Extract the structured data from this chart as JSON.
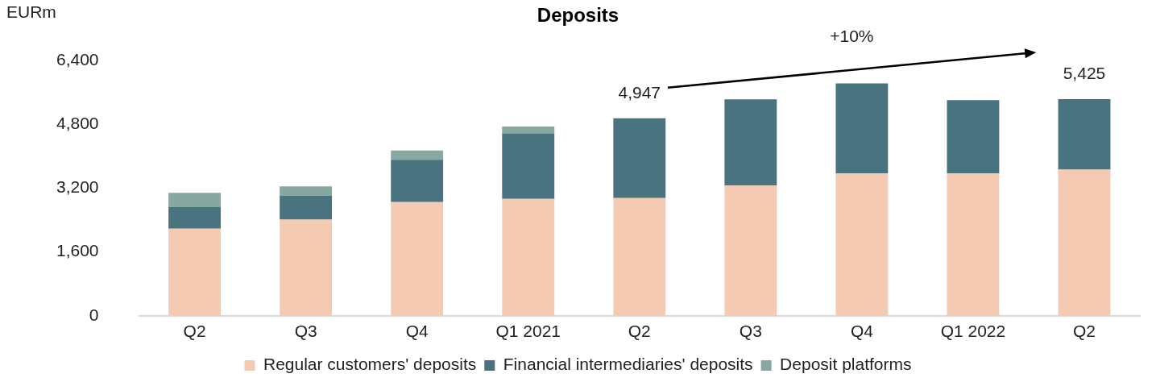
{
  "chart_data": {
    "type": "bar",
    "title": "Deposits",
    "ylabel": "EURm",
    "stacked": true,
    "categories": [
      "Q2",
      "Q3",
      "Q4",
      "Q1 2021",
      "Q2",
      "Q3",
      "Q4",
      "Q1 2022",
      "Q2"
    ],
    "series": [
      {
        "name": "Regular customers' deposits",
        "color": "#f4cbb2",
        "values": [
          2180,
          2410,
          2850,
          2930,
          2950,
          3260,
          3570,
          3570,
          3660
        ]
      },
      {
        "name": "Financial intermediaries' deposits",
        "color": "#48737f",
        "values": [
          540,
          600,
          1060,
          1640,
          1997,
          2160,
          2250,
          1830,
          1765
        ]
      },
      {
        "name": "Deposit platforms",
        "color": "#86a8a0",
        "values": [
          360,
          230,
          230,
          170,
          null,
          null,
          null,
          null,
          null
        ]
      }
    ],
    "totals": [
      null,
      null,
      null,
      null,
      "4,947",
      null,
      null,
      null,
      "5,425"
    ],
    "annotations": [
      "+10%"
    ],
    "ylim": [
      0,
      6400
    ],
    "yticks": [
      0,
      {
        "value": 1600,
        "label": "1,600"
      },
      {
        "value": 3200,
        "label": "3,200"
      },
      {
        "value": 4800,
        "label": "4,800"
      },
      {
        "value": 6400,
        "label": "6,400"
      }
    ],
    "grid": false,
    "legend": "bottom"
  }
}
